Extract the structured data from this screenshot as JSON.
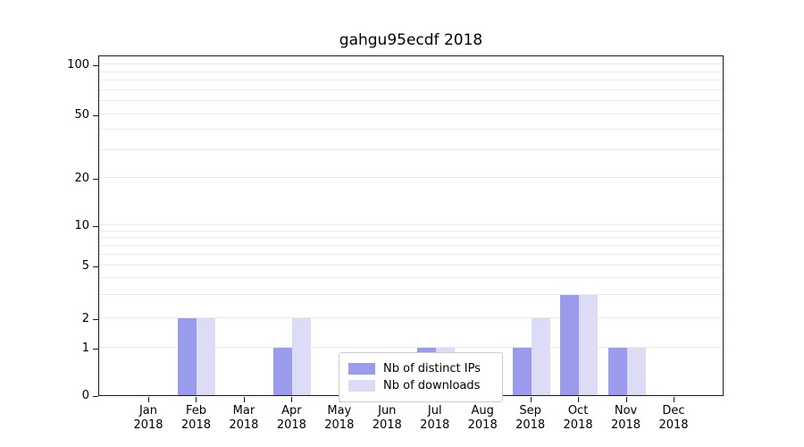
{
  "chart_data": {
    "type": "bar",
    "title": "gahgu95ecdf 2018",
    "categories": [
      "Jan 2018",
      "Feb 2018",
      "Mar 2018",
      "Apr 2018",
      "May 2018",
      "Jun 2018",
      "Jul 2018",
      "Aug 2018",
      "Sep 2018",
      "Oct 2018",
      "Nov 2018",
      "Dec 2018"
    ],
    "series": [
      {
        "name": "Nb of distinct IPs",
        "color": "#9b9bee",
        "values": [
          0,
          2,
          0,
          1,
          0,
          0,
          1,
          0,
          1,
          3,
          1,
          0
        ]
      },
      {
        "name": "Nb of downloads",
        "color": "#dcdcf7",
        "values": [
          0,
          2,
          0,
          2,
          0,
          0,
          1,
          0,
          2,
          3,
          1,
          0
        ]
      }
    ],
    "yscale": "symlog",
    "yticks": [
      0,
      1,
      2,
      5,
      10,
      20,
      50,
      100
    ],
    "minor_gridlines": [
      3,
      4,
      6,
      7,
      8,
      9,
      30,
      40,
      60,
      70,
      80,
      90
    ],
    "ylim": [
      0,
      100
    ],
    "grid": true,
    "legend_position": "lower center"
  }
}
